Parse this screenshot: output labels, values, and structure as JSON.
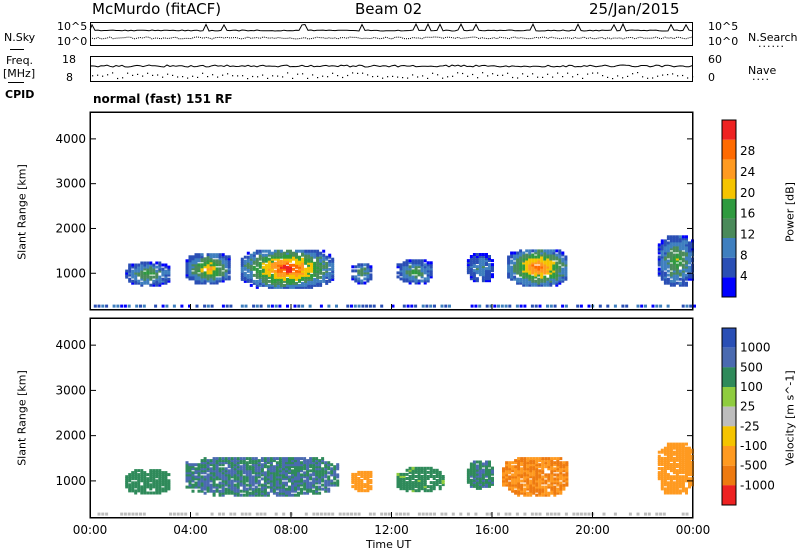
{
  "header": {
    "station": "McMurdo (fitACF)",
    "beam": "Beam 02",
    "date": "25/Jan/2015"
  },
  "left_labels": {
    "nsky": "N.Sky",
    "freq": "Freq.",
    "freq_unit": "[MHz]",
    "cpid": "CPID"
  },
  "right_labels": {
    "nsearch": "N.Search",
    "nave": "Nave"
  },
  "noise_axis": {
    "left_top": "10^5",
    "left_bottom": "10^0",
    "right_top": "10^5",
    "right_bottom": "10^0"
  },
  "freq_axis": {
    "left_top": "18",
    "left_bottom": "8",
    "right_top": "60",
    "right_bottom": "0"
  },
  "cpid_text": "normal (fast) 151 RF",
  "colors": {
    "power_scale": [
      "#0000ff",
      "#2a4fb5",
      "#3f7fbf",
      "#4a8a5a",
      "#2f9a3f",
      "#f5c400",
      "#ff9a20",
      "#ff6a00",
      "#ee2222"
    ],
    "velocity_scale": [
      "#2a4fb5",
      "#4a6ab0",
      "#2f8a5a",
      "#8fcc3f",
      "#bdbdbd",
      "#f5c400",
      "#ff9a20",
      "#ee7a10",
      "#ee2222"
    ]
  },
  "chart_data": [
    {
      "type": "heatmap",
      "title": "",
      "xlabel": "Time UT",
      "ylabel": "Slant Range [km]",
      "x_ticks": [
        "00:00",
        "04:00",
        "08:00",
        "12:00",
        "16:00",
        "20:00",
        "00:00"
      ],
      "y_ticks": [
        "1000",
        "2000",
        "3000",
        "4000"
      ],
      "ylim": [
        180,
        4600
      ],
      "colorbar_label": "Power [dB]",
      "colorbar_ticks": [
        "4",
        "8",
        "12",
        "16",
        "20",
        "24",
        "28"
      ],
      "echo_regions": [
        {
          "t_start": 1.4,
          "t_end": 3.2,
          "r_min": 700,
          "r_max": 1200,
          "peak_db": 14
        },
        {
          "t_start": 3.8,
          "t_end": 5.6,
          "r_min": 750,
          "r_max": 1400,
          "peak_db": 20
        },
        {
          "t_start": 6.0,
          "t_end": 9.6,
          "r_min": 650,
          "r_max": 1500,
          "peak_db": 28
        },
        {
          "t_start": 10.4,
          "t_end": 11.2,
          "r_min": 750,
          "r_max": 1200,
          "peak_db": 12
        },
        {
          "t_start": 12.2,
          "t_end": 13.6,
          "r_min": 750,
          "r_max": 1250,
          "peak_db": 14
        },
        {
          "t_start": 15.0,
          "t_end": 16.0,
          "r_min": 800,
          "r_max": 1400,
          "peak_db": 10
        },
        {
          "t_start": 16.6,
          "t_end": 19.0,
          "r_min": 700,
          "r_max": 1500,
          "peak_db": 26
        },
        {
          "t_start": 22.6,
          "t_end": 24.0,
          "r_min": 700,
          "r_max": 1800,
          "peak_db": 16
        }
      ]
    },
    {
      "type": "heatmap",
      "title": "",
      "xlabel": "Time UT",
      "ylabel": "Slant Range [km]",
      "x_ticks": [
        "00:00",
        "04:00",
        "08:00",
        "12:00",
        "16:00",
        "20:00",
        "00:00"
      ],
      "y_ticks": [
        "1000",
        "2000",
        "3000",
        "4000"
      ],
      "ylim": [
        180,
        4600
      ],
      "colorbar_label": "Velocity [m s^-1]",
      "colorbar_ticks": [
        "1000",
        "500",
        "100",
        "25",
        "-25",
        "-100",
        "-500",
        "-1000"
      ],
      "echo_regions": [
        {
          "t_start": 1.4,
          "t_end": 3.2,
          "r_min": 700,
          "r_max": 1200,
          "velocity": 200
        },
        {
          "t_start": 3.8,
          "t_end": 9.8,
          "r_min": 650,
          "r_max": 1500,
          "velocity": 300
        },
        {
          "t_start": 10.4,
          "t_end": 11.2,
          "r_min": 750,
          "r_max": 1200,
          "velocity": -200
        },
        {
          "t_start": 12.2,
          "t_end": 14.0,
          "r_min": 750,
          "r_max": 1250,
          "velocity": 150
        },
        {
          "t_start": 15.0,
          "t_end": 16.0,
          "r_min": 800,
          "r_max": 1400,
          "velocity": 250
        },
        {
          "t_start": 16.4,
          "t_end": 19.0,
          "r_min": 650,
          "r_max": 1500,
          "velocity": -300
        },
        {
          "t_start": 22.6,
          "t_end": 24.0,
          "r_min": 700,
          "r_max": 1800,
          "velocity": -200
        }
      ]
    }
  ]
}
